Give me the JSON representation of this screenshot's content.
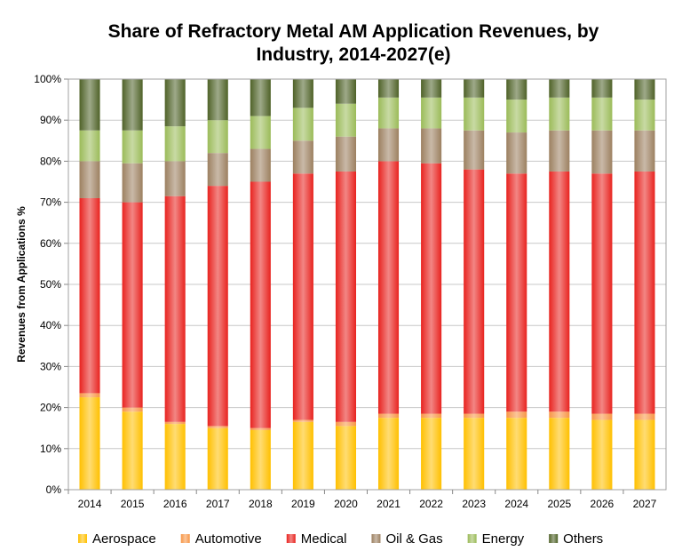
{
  "chart_data": {
    "type": "bar",
    "stacked": true,
    "title_line1": "Share of Refractory Metal AM Application Revenues, by",
    "title_line2": "Industry, 2014-2027(e)",
    "xlabel": "",
    "ylabel": "Revenues from Applications %",
    "ylim": [
      0,
      100
    ],
    "yticks": [
      "0%",
      "10%",
      "20%",
      "30%",
      "40%",
      "50%",
      "60%",
      "70%",
      "80%",
      "90%",
      "100%"
    ],
    "grid": true,
    "legend_position": "bottom",
    "categories": [
      "2014",
      "2015",
      "2016",
      "2017",
      "2018",
      "2019",
      "2020",
      "2021",
      "2022",
      "2023",
      "2024",
      "2025",
      "2026",
      "2027"
    ],
    "series": [
      {
        "name": "Aerospace",
        "color": "#FFC000",
        "values": [
          22.5,
          19,
          16,
          15,
          14.5,
          16.5,
          15.5,
          17.5,
          17.5,
          17.5,
          17.5,
          17.5,
          17,
          17
        ]
      },
      {
        "name": "Automotive",
        "color": "#F79646",
        "values": [
          1,
          1,
          0.5,
          0.5,
          0.5,
          0.5,
          1,
          1,
          1,
          1,
          1.5,
          1.5,
          1.5,
          1.5
        ]
      },
      {
        "name": "Medical",
        "color": "#E8231F",
        "values": [
          47.5,
          50,
          55,
          58.5,
          60,
          60,
          61,
          61.5,
          61,
          59.5,
          58,
          58.5,
          58.5,
          59
        ]
      },
      {
        "name": "Oil & Gas",
        "color": "#9C8060",
        "values": [
          9,
          9.5,
          8.5,
          8,
          8,
          8,
          8.5,
          8,
          8.5,
          9.5,
          10,
          10,
          10.5,
          10
        ]
      },
      {
        "name": "Energy",
        "color": "#9BBB59",
        "values": [
          7.5,
          8,
          8.5,
          8,
          8,
          8,
          8,
          7.5,
          7.5,
          8,
          8,
          8,
          8,
          7.5
        ]
      },
      {
        "name": "Others",
        "color": "#4F6228",
        "values": [
          12.5,
          12.5,
          11.5,
          10,
          9,
          7,
          6,
          4.5,
          4.5,
          4.5,
          5,
          4.5,
          4.5,
          5
        ]
      }
    ]
  }
}
